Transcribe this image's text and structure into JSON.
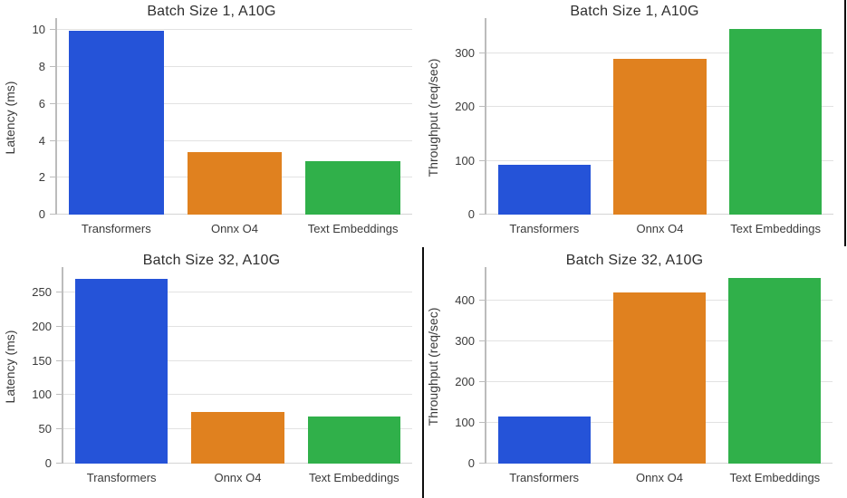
{
  "figure": {
    "background": "#ffffff",
    "grid_color": "#e2e2e2",
    "axis_spine_color": "#bcbcbc",
    "text_color": "#3a3a3a",
    "divider_color": "#0d0d0d"
  },
  "palette": {
    "transformers": "#2553d8",
    "onnx_o4": "#e0811f",
    "text_embeddings": "#30b04a"
  },
  "chart_data": [
    {
      "id": "latency-batch-1",
      "type": "bar",
      "title": "Batch Size 1, A10G",
      "xlabel": "",
      "ylabel": "Latency (ms)",
      "categories": [
        "Transformers",
        "Onnx O4",
        "Text Embeddings"
      ],
      "values": [
        9.95,
        3.4,
        2.9
      ],
      "bar_colors": [
        "#2553d8",
        "#e0811f",
        "#30b04a"
      ],
      "yticks": [
        0,
        2,
        4,
        6,
        8,
        10
      ],
      "ylim": [
        0,
        10.65
      ],
      "grid": true,
      "legend_position": "none"
    },
    {
      "id": "throughput-batch-1",
      "type": "bar",
      "title": "Batch Size 1, A10G",
      "xlabel": "",
      "ylabel": "Throughput (req/sec)",
      "categories": [
        "Transformers",
        "Onnx O4",
        "Text Embeddings"
      ],
      "values": [
        93,
        290,
        345
      ],
      "bar_colors": [
        "#2553d8",
        "#e0811f",
        "#30b04a"
      ],
      "yticks": [
        0,
        100,
        200,
        300
      ],
      "ylim": [
        0,
        366
      ],
      "grid": true,
      "legend_position": "none"
    },
    {
      "id": "latency-batch-32",
      "type": "bar",
      "title": "Batch Size 32, A10G",
      "xlabel": "",
      "ylabel": "Latency (ms)",
      "categories": [
        "Transformers",
        "Onnx O4",
        "Text Embeddings"
      ],
      "values": [
        270,
        76,
        69
      ],
      "bar_colors": [
        "#2553d8",
        "#e0811f",
        "#30b04a"
      ],
      "yticks": [
        0,
        50,
        100,
        150,
        200,
        250
      ],
      "ylim": [
        0,
        287
      ],
      "grid": true,
      "legend_position": "none"
    },
    {
      "id": "throughput-batch-32",
      "type": "bar",
      "title": "Batch Size 32, A10G",
      "xlabel": "",
      "ylabel": "Throughput (req/sec)",
      "categories": [
        "Transformers",
        "Onnx O4",
        "Text Embeddings"
      ],
      "values": [
        115,
        420,
        455
      ],
      "bar_colors": [
        "#2553d8",
        "#e0811f",
        "#30b04a"
      ],
      "yticks": [
        0,
        100,
        200,
        300,
        400
      ],
      "ylim": [
        0,
        482
      ],
      "grid": true,
      "legend_position": "none"
    }
  ]
}
